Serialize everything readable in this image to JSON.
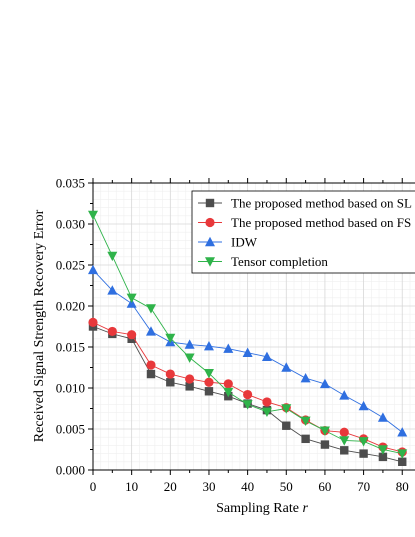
{
  "chart_data": {
    "type": "line",
    "xlabel": "Sampling Rate",
    "xlabel_var": "r",
    "ylabel": "Received Signal Strength Recovery Error",
    "xlim": [
      0,
      80
    ],
    "ylim": [
      0,
      0.035
    ],
    "x_ticks": [
      "0",
      "10",
      "20",
      "30",
      "40",
      "50",
      "60",
      "70",
      "80"
    ],
    "y_ticks": [
      "0.000",
      "0.005",
      "0.010",
      "0.015",
      "0.020",
      "0.025",
      "0.030",
      "0.035"
    ],
    "grid": true,
    "legend_position": "top-right",
    "x": [
      0,
      5,
      10,
      15,
      20,
      25,
      30,
      35,
      40,
      45,
      50,
      55,
      60,
      65,
      70,
      75,
      80
    ],
    "series": [
      {
        "name": "The proposed method based on SL",
        "marker": "square",
        "color": "#4d4d4d",
        "values": [
          0.0175,
          0.0166,
          0.016,
          0.0117,
          0.0107,
          0.0102,
          0.0096,
          0.009,
          0.0081,
          0.0073,
          0.0054,
          0.0038,
          0.0031,
          0.0024,
          0.002,
          0.0016,
          0.001
        ]
      },
      {
        "name": "The proposed method based on FS",
        "marker": "circle",
        "color": "#e8383b",
        "values": [
          0.018,
          0.0169,
          0.0165,
          0.0128,
          0.0117,
          0.0111,
          0.0107,
          0.0105,
          0.0092,
          0.0083,
          0.0076,
          0.0061,
          0.0048,
          0.0046,
          0.0038,
          0.0028,
          0.0022
        ]
      },
      {
        "name": "IDW",
        "marker": "triangle-up",
        "color": "#2f6fe0",
        "values": [
          0.0244,
          0.0219,
          0.0203,
          0.0169,
          0.0156,
          0.0153,
          0.0151,
          0.0148,
          0.0143,
          0.0138,
          0.0125,
          0.0112,
          0.0105,
          0.0091,
          0.0078,
          0.0064,
          0.0046
        ]
      },
      {
        "name": "Tensor completion",
        "marker": "triangle-down",
        "color": "#2fb34a",
        "values": [
          0.0311,
          0.0261,
          0.021,
          0.0197,
          0.0161,
          0.0137,
          0.0118,
          0.0095,
          0.008,
          0.0071,
          0.0075,
          0.006,
          0.0048,
          0.0036,
          0.0035,
          0.0025,
          0.002
        ]
      }
    ]
  }
}
